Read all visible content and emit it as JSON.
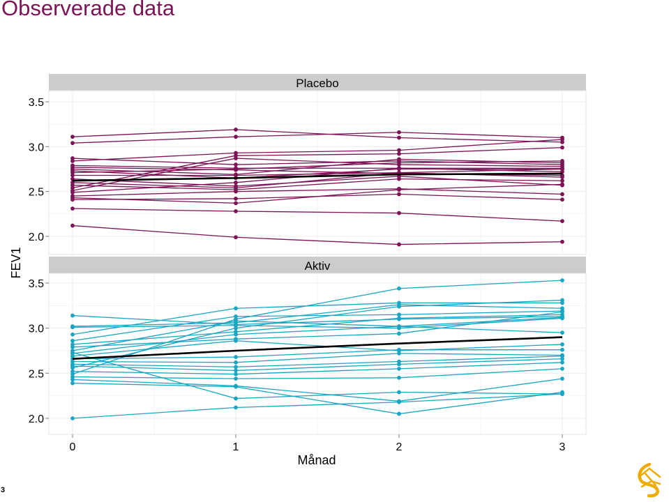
{
  "page": {
    "title": "Observerade data",
    "slide_number": "3",
    "logo": "astrazeneca-logo"
  },
  "colors": {
    "title": "#7b1356",
    "placebo": "#7b1356",
    "aktiv": "#1aa6c3",
    "mean": "#000000",
    "strip": "#cccccc",
    "grid": "#ececec"
  },
  "chart_data": {
    "type": "line",
    "xlabel": "Månad",
    "ylabel": "FEV1",
    "x": [
      0,
      1,
      2,
      3
    ],
    "x_ticks": [
      "0",
      "1",
      "2",
      "3"
    ],
    "y_ticks": [
      "2.0",
      "2.5",
      "3.0",
      "3.5"
    ],
    "ylim": [
      1.9,
      3.65
    ],
    "grid": true,
    "legend": "none",
    "panels": [
      {
        "strip": "Placebo",
        "color": "#7b1356",
        "mean_line": [
          2.62,
          2.65,
          2.69,
          2.7
        ],
        "subjects": [
          [
            3.11,
            3.19,
            3.1,
            3.05
          ],
          [
            3.04,
            3.11,
            3.16,
            3.1
          ],
          [
            2.87,
            2.8,
            2.84,
            2.8
          ],
          [
            2.84,
            2.93,
            2.96,
            3.08
          ],
          [
            2.79,
            2.76,
            2.76,
            2.76
          ],
          [
            2.77,
            2.74,
            2.7,
            2.68
          ],
          [
            2.75,
            2.69,
            2.86,
            2.82
          ],
          [
            2.73,
            2.65,
            2.75,
            2.75
          ],
          [
            2.71,
            2.75,
            2.82,
            2.84
          ],
          [
            2.68,
            2.68,
            2.71,
            2.66
          ],
          [
            2.64,
            2.56,
            2.67,
            2.57
          ],
          [
            2.6,
            2.54,
            2.71,
            2.75
          ],
          [
            2.57,
            2.52,
            2.64,
            2.62
          ],
          [
            2.54,
            2.9,
            2.92,
            2.99
          ],
          [
            2.51,
            2.87,
            2.8,
            2.78
          ],
          [
            2.49,
            2.6,
            2.76,
            2.72
          ],
          [
            2.45,
            2.5,
            2.53,
            2.47
          ],
          [
            2.43,
            2.37,
            2.52,
            2.58
          ],
          [
            2.41,
            2.42,
            2.47,
            2.41
          ],
          [
            2.31,
            2.28,
            2.26,
            2.17
          ],
          [
            2.12,
            1.99,
            1.91,
            1.94
          ]
        ]
      },
      {
        "strip": "Aktiv",
        "color": "#1aa6c3",
        "mean_line": [
          2.66,
          2.75,
          2.83,
          2.9
        ],
        "subjects": [
          [
            3.14,
            3.04,
            3.1,
            3.13
          ],
          [
            3.02,
            3.06,
            3.26,
            3.22
          ],
          [
            3.01,
            3.03,
            3.0,
            3.11
          ],
          [
            2.93,
            3.22,
            3.28,
            3.28
          ],
          [
            2.86,
            3.13,
            3.15,
            3.19
          ],
          [
            2.82,
            2.96,
            3.11,
            3.15
          ],
          [
            2.79,
            2.88,
            2.94,
            3.18
          ],
          [
            2.75,
            3.08,
            3.02,
            3.12
          ],
          [
            2.72,
            2.93,
            3.02,
            2.95
          ],
          [
            2.69,
            2.86,
            2.75,
            2.82
          ],
          [
            2.66,
            2.68,
            2.76,
            2.76
          ],
          [
            2.63,
            2.62,
            2.72,
            2.7
          ],
          [
            2.6,
            2.57,
            2.63,
            2.69
          ],
          [
            2.58,
            2.53,
            2.6,
            2.66
          ],
          [
            2.52,
            2.49,
            2.55,
            2.62
          ],
          [
            2.49,
            3.1,
            3.44,
            3.53
          ],
          [
            2.46,
            2.44,
            2.45,
            2.55
          ],
          [
            2.43,
            2.36,
            2.19,
            2.44
          ],
          [
            2.39,
            2.35,
            2.05,
            2.29
          ],
          [
            2.0,
            2.12,
            2.18,
            2.27
          ],
          [
            2.73,
            2.22,
            2.29,
            2.27
          ],
          [
            2.56,
            3.0,
            3.24,
            3.31
          ]
        ]
      }
    ]
  }
}
